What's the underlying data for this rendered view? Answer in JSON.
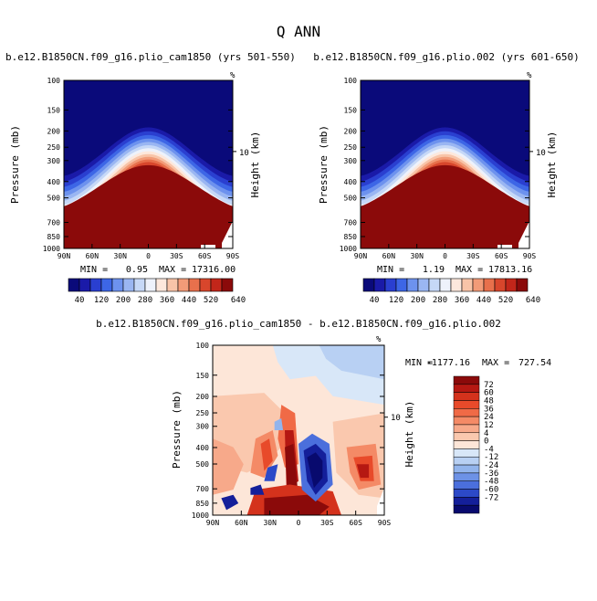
{
  "page_title": "Q ANN",
  "palette": {
    "top": [
      "#0a0a7a",
      "#1a1aa8",
      "#2a3fd0",
      "#3d66e6",
      "#6d92ee",
      "#9ab6f2",
      "#c6d8f7",
      "#eef2fb",
      "#fde8dc",
      "#f8c4a8",
      "#f29b78",
      "#e8704c",
      "#d8462c",
      "#c2261a",
      "#8b0a0a"
    ],
    "diff": [
      "#8b0a0a",
      "#b51812",
      "#d4321c",
      "#e84a2a",
      "#f06a46",
      "#f48a66",
      "#f7a98a",
      "#fac8ae",
      "#fde6d8",
      "#d8e7f8",
      "#b8d0f3",
      "#92b4ec",
      "#6d92e6",
      "#4b6fdc",
      "#2c49c8",
      "#141f9a",
      "#080a6e"
    ]
  },
  "chart_data": [
    {
      "type": "heatmap",
      "title": "b.e12.B1850CN.f09_g16.plio_cam1850 (yrs 501-550)",
      "ylabel": "Pressure (mb)",
      "ylabel_right": "Height (km)",
      "right_ticks": [
        "10"
      ],
      "corner_label": "%",
      "x_ticks": [
        "90N",
        "60N",
        "30N",
        "0",
        "30S",
        "60S",
        "90S"
      ],
      "y_ticks": [
        "100",
        "150",
        "200",
        "250",
        "300",
        "400",
        "500",
        "700",
        "850",
        "1000"
      ],
      "ylim": [
        1000,
        100
      ],
      "tropopause_peak_mb": 180,
      "surface_cap_mb": 320,
      "min_label": "MIN =",
      "min_value": "0.95",
      "max_label": "MAX =",
      "max_value": "17316.00"
    },
    {
      "type": "heatmap",
      "title": "b.e12.B1850CN.f09_g16.plio.002 (yrs 601-650)",
      "ylabel": "Pressure (mb)",
      "ylabel_right": "Height (km)",
      "right_ticks": [
        "10"
      ],
      "corner_label": "%",
      "x_ticks": [
        "90N",
        "60N",
        "30N",
        "0",
        "30S",
        "60S",
        "90S"
      ],
      "y_ticks": [
        "100",
        "150",
        "200",
        "250",
        "300",
        "400",
        "500",
        "700",
        "850",
        "1000"
      ],
      "ylim": [
        1000,
        100
      ],
      "tropopause_peak_mb": 180,
      "surface_cap_mb": 320,
      "min_label": "MIN =",
      "min_value": "1.19",
      "max_label": "MAX =",
      "max_value": "17813.16"
    },
    {
      "type": "heatmap",
      "title": "b.e12.B1850CN.f09_g16.plio_cam1850 - b.e12.B1850CN.f09_g16.plio.002",
      "ylabel": "Pressure (mb)",
      "ylabel_right": "Height (km)",
      "right_ticks": [
        "10"
      ],
      "corner_label": "%",
      "x_ticks": [
        "90N",
        "60N",
        "30N",
        "0",
        "30S",
        "60S",
        "90S"
      ],
      "y_ticks": [
        "100",
        "150",
        "200",
        "250",
        "300",
        "400",
        "500",
        "700",
        "850",
        "1000"
      ],
      "ylim": [
        1000,
        100
      ],
      "min_label": "MIN =",
      "min_value": "-1177.16",
      "max_label": "MAX =",
      "max_value": "727.54"
    }
  ],
  "colorbar_top": {
    "labels": [
      "40",
      "120",
      "200",
      "280",
      "360",
      "440",
      "520",
      "640"
    ]
  },
  "colorbar_diff": {
    "labels": [
      "72",
      "60",
      "48",
      "36",
      "24",
      "12",
      "4",
      "0",
      "-4",
      "-12",
      "-24",
      "-36",
      "-48",
      "-60",
      "-72"
    ]
  }
}
